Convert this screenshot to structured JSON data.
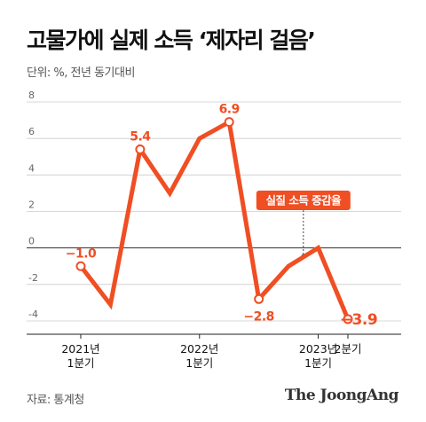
{
  "header": {
    "title": "고물가에 실제 소득 ‘제자리 걸음’",
    "unit": "단위: %, 전년 동기대비"
  },
  "footer": {
    "source": "자료: 통계청",
    "logo": "The JoongAng"
  },
  "colors": {
    "line": "#f04e23",
    "grid": "#cccccc",
    "zero": "#333333"
  },
  "chart_data": {
    "type": "line",
    "title": "고물가에 실제 소득 ‘제자리 걸음’",
    "ylabel": "",
    "xlabel": "",
    "ylim": [
      -5,
      8
    ],
    "yticks": [
      "8",
      "6",
      "4",
      "2",
      "0",
      "-2",
      "-4"
    ],
    "ytick_values": [
      8,
      6,
      4,
      2,
      0,
      -2,
      -4
    ],
    "grid": true,
    "x_tick_labels": [
      {
        "index": 0,
        "line1": "2021년",
        "line2": "1분기"
      },
      {
        "index": 4,
        "line1": "2022년",
        "line2": "1분기"
      },
      {
        "index": 8,
        "line1": "2023년",
        "line2": "1분기"
      },
      {
        "index": 9,
        "line1": "2분기",
        "line2": ""
      }
    ],
    "series": [
      {
        "name": "실질 소득 증감율",
        "values": [
          -1.0,
          -3.1,
          5.4,
          3.0,
          6.0,
          6.9,
          -2.8,
          -1.0,
          0.0,
          -3.9
        ]
      }
    ],
    "data_labels": [
      {
        "index": 0,
        "text": "−1.0",
        "pos": "above"
      },
      {
        "index": 2,
        "text": "5.4",
        "pos": "above"
      },
      {
        "index": 5,
        "text": "6.9",
        "pos": "above"
      },
      {
        "index": 6,
        "text": "−2.8",
        "pos": "below"
      },
      {
        "index": 9,
        "text": "−3.9",
        "pos": "right"
      }
    ],
    "markers": [
      0,
      2,
      5,
      6,
      9
    ],
    "callout": {
      "text": "실질 소득 증감율",
      "index": 7.5
    }
  }
}
